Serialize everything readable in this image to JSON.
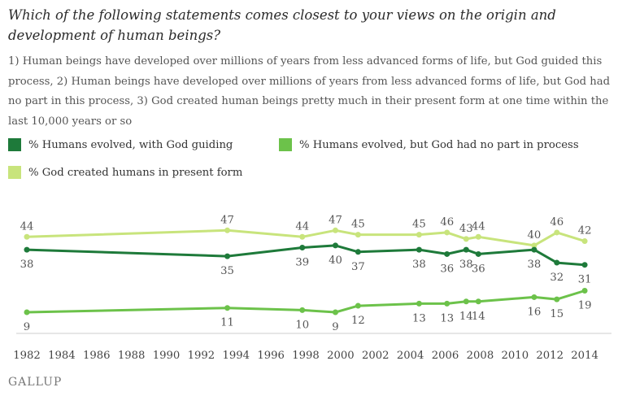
{
  "title": "Which of the following statements comes closest to your views on the origin and development of human beings?",
  "subtitle": "1) Human beings have developed over millions of years from less advanced forms of life, but God guided this process, 2) Human beings have developed over millions of years from less advanced forms of life, but God had no part in this process, 3) God created human beings pretty much in their present form at one time within the last 10,000 years or so",
  "logo": "GALLUP",
  "colors": {
    "god_guiding": "#1e7a3a",
    "no_god": "#6cc24a",
    "creationist": "#c8e47c"
  },
  "chart_data": {
    "type": "line",
    "x_ticks": [
      "1982",
      "1984",
      "1986",
      "1988",
      "1990",
      "1992",
      "1994",
      "1996",
      "1998",
      "2000",
      "2002",
      "2004",
      "2006",
      "2008",
      "2010",
      "2012",
      "2014"
    ],
    "xlim": [
      1982,
      2014.5
    ],
    "grid": false,
    "legend_position": "top-left",
    "series": [
      {
        "name": "% Humans evolved, with God guiding",
        "color": "#1e7a3a",
        "points": [
          [
            1982.0,
            38
          ],
          [
            1993.5,
            35
          ],
          [
            1997.8,
            39
          ],
          [
            1999.7,
            40
          ],
          [
            2001.0,
            37
          ],
          [
            2004.5,
            38
          ],
          [
            2006.1,
            36
          ],
          [
            2007.2,
            38
          ],
          [
            2007.9,
            36
          ],
          [
            2011.1,
            38
          ],
          [
            2012.4,
            32
          ],
          [
            2014.0,
            31
          ]
        ],
        "labels": [
          "38",
          "35",
          "39",
          "40",
          "37",
          "38",
          "36",
          "38",
          "36",
          "38",
          "32",
          "31"
        ]
      },
      {
        "name": "% Humans evolved, but God had no part in process",
        "color": "#6cc24a",
        "points": [
          [
            1982.0,
            9
          ],
          [
            1993.5,
            11
          ],
          [
            1997.8,
            10
          ],
          [
            1999.7,
            9
          ],
          [
            2001.0,
            12
          ],
          [
            2004.5,
            13
          ],
          [
            2006.1,
            13
          ],
          [
            2007.2,
            14
          ],
          [
            2007.9,
            14
          ],
          [
            2011.1,
            16
          ],
          [
            2012.4,
            15
          ],
          [
            2014.0,
            19
          ]
        ],
        "labels": [
          "9",
          "11",
          "10",
          "9",
          "12",
          "13",
          "13",
          "14",
          "14",
          "16",
          "15",
          "19"
        ]
      },
      {
        "name": "% God created humans in present form",
        "color": "#c8e47c",
        "points": [
          [
            1982.0,
            44
          ],
          [
            1993.5,
            47
          ],
          [
            1997.8,
            44
          ],
          [
            1999.7,
            47
          ],
          [
            2001.0,
            45
          ],
          [
            2004.5,
            45
          ],
          [
            2006.1,
            46
          ],
          [
            2007.2,
            43
          ],
          [
            2007.9,
            44
          ],
          [
            2011.1,
            40
          ],
          [
            2012.4,
            46
          ],
          [
            2014.0,
            42
          ]
        ],
        "labels": [
          "44",
          "47",
          "44",
          "47",
          "45",
          "45",
          "46",
          "43",
          "44",
          "40",
          "46",
          "42"
        ]
      }
    ]
  }
}
